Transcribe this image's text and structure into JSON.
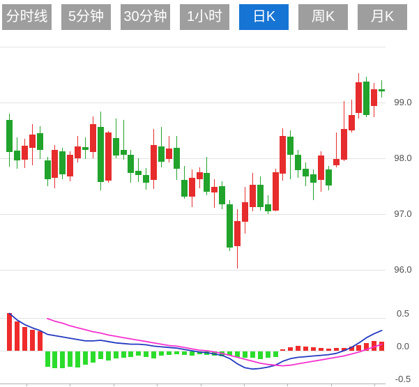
{
  "tabs": [
    {
      "label": "分时线",
      "active": false
    },
    {
      "label": "5分钟",
      "active": false
    },
    {
      "label": "30分钟",
      "active": false
    },
    {
      "label": "1小时",
      "active": false
    },
    {
      "label": "日K",
      "active": true
    },
    {
      "label": "周K",
      "active": false
    },
    {
      "label": "月K",
      "active": false
    }
  ],
  "colors": {
    "tab_bg": "#9e9e9e",
    "tab_active_bg": "#1674d4",
    "up": "#e62c2c",
    "down": "#21a32c",
    "hist_up": "#ef2b2b",
    "hist_down": "#2cdc2c",
    "dif_line": "#2238c0",
    "dea_line": "#f531cf",
    "grid": "#e2e2e2",
    "axis": "#b0b0b0",
    "label": "#4d4d4d"
  },
  "chart_data": {
    "type": "candlestick",
    "color_convention": "red = close above open (up), green = close below open (down)",
    "panels": [
      {
        "name": "price",
        "yticks": [
          "99.0",
          "98.0",
          "97.0",
          "96.0"
        ],
        "ytick_values": [
          99.0,
          98.0,
          97.0,
          96.0
        ],
        "ylim": [
          95.9,
          100.1
        ],
        "grid": true,
        "legend": "none"
      },
      {
        "name": "macd",
        "yticks": [
          "0.5",
          "0.0",
          "-0.5"
        ],
        "ytick_values": [
          0.5,
          0.0,
          -0.5
        ],
        "ylim": [
          -0.55,
          0.6
        ],
        "grid": true,
        "legend": "none"
      }
    ],
    "ohlc_order": [
      "open",
      "high",
      "low",
      "close"
    ],
    "candles": [
      [
        98.69,
        98.8,
        97.85,
        98.11
      ],
      [
        98.14,
        98.38,
        97.81,
        97.96
      ],
      [
        97.98,
        98.35,
        97.83,
        98.23
      ],
      [
        98.19,
        98.61,
        97.88,
        98.42
      ],
      [
        98.45,
        98.57,
        97.99,
        98.15
      ],
      [
        97.96,
        98.03,
        97.5,
        97.63
      ],
      [
        97.65,
        98.24,
        97.46,
        98.15
      ],
      [
        98.13,
        98.19,
        97.63,
        97.71
      ],
      [
        97.68,
        98.13,
        97.59,
        98.06
      ],
      [
        98.0,
        98.4,
        97.93,
        98.21
      ],
      [
        98.2,
        98.38,
        97.99,
        98.15
      ],
      [
        98.11,
        98.75,
        98.0,
        98.61
      ],
      [
        98.56,
        98.84,
        97.43,
        97.57
      ],
      [
        97.6,
        98.49,
        97.56,
        98.46
      ],
      [
        98.36,
        98.71,
        98.0,
        98.05
      ],
      [
        98.15,
        98.69,
        97.97,
        98.06
      ],
      [
        98.06,
        98.15,
        97.56,
        97.74
      ],
      [
        97.78,
        98.0,
        97.58,
        97.7
      ],
      [
        97.7,
        97.83,
        97.44,
        97.56
      ],
      [
        97.61,
        98.53,
        97.45,
        98.24
      ],
      [
        98.21,
        98.56,
        97.84,
        97.94
      ],
      [
        97.99,
        98.4,
        97.93,
        98.18
      ],
      [
        98.19,
        98.4,
        97.61,
        97.81
      ],
      [
        97.61,
        97.86,
        97.28,
        97.31
      ],
      [
        97.31,
        97.8,
        97.13,
        97.65
      ],
      [
        97.63,
        97.84,
        97.46,
        97.75
      ],
      [
        97.74,
        98.03,
        97.34,
        97.4
      ],
      [
        97.39,
        97.63,
        97.11,
        97.49
      ],
      [
        97.5,
        97.59,
        97.09,
        97.17
      ],
      [
        97.18,
        97.25,
        96.34,
        96.4
      ],
      [
        96.43,
        97.09,
        96.03,
        96.88
      ],
      [
        96.86,
        97.49,
        96.65,
        97.21
      ],
      [
        97.13,
        97.74,
        97.05,
        97.53
      ],
      [
        97.53,
        97.68,
        97.06,
        97.13
      ],
      [
        97.18,
        97.34,
        97.0,
        97.05
      ],
      [
        97.06,
        97.81,
        97.05,
        97.75
      ],
      [
        97.73,
        98.54,
        97.6,
        98.4
      ],
      [
        98.39,
        98.5,
        97.62,
        98.06
      ],
      [
        98.06,
        98.15,
        97.65,
        97.79
      ],
      [
        97.81,
        97.92,
        97.5,
        97.67
      ],
      [
        97.71,
        97.8,
        97.25,
        97.56
      ],
      [
        97.61,
        98.13,
        97.4,
        98.05
      ],
      [
        97.8,
        97.86,
        97.42,
        97.51
      ],
      [
        97.88,
        98.46,
        97.84,
        97.99
      ],
      [
        97.98,
        99.02,
        97.95,
        98.52
      ],
      [
        98.5,
        99.05,
        98.46,
        98.78
      ],
      [
        98.81,
        99.53,
        98.71,
        99.36
      ],
      [
        99.38,
        99.46,
        98.74,
        98.78
      ],
      [
        98.94,
        99.35,
        98.74,
        99.24
      ],
      [
        99.24,
        99.4,
        99.09,
        99.2
      ]
    ],
    "macd": {
      "histogram": [
        0.57,
        0.45,
        0.36,
        0.32,
        0.3,
        -0.23,
        -0.26,
        -0.25,
        -0.23,
        -0.24,
        -0.2,
        -0.17,
        -0.12,
        -0.14,
        -0.11,
        -0.1,
        -0.08,
        -0.06,
        -0.09,
        -0.11,
        -0.06,
        -0.05,
        -0.04,
        -0.05,
        -0.06,
        -0.04,
        -0.05,
        -0.06,
        -0.07,
        -0.06,
        -0.08,
        -0.1,
        -0.1,
        -0.12,
        -0.1,
        -0.08,
        0.02,
        0.05,
        0.07,
        0.06,
        0.05,
        0.04,
        0.03,
        0.04,
        0.04,
        0.06,
        0.09,
        0.12,
        0.15,
        0.14
      ],
      "dif": [
        0.57,
        0.47,
        0.4,
        0.35,
        0.31,
        0.25,
        0.23,
        0.21,
        0.19,
        0.17,
        0.15,
        0.15,
        0.16,
        0.14,
        0.12,
        0.11,
        0.1,
        0.1,
        0.09,
        0.07,
        0.06,
        0.05,
        0.04,
        0.02,
        0.0,
        -0.02,
        -0.03,
        -0.05,
        -0.07,
        -0.12,
        -0.2,
        -0.26,
        -0.28,
        -0.27,
        -0.25,
        -0.22,
        -0.16,
        -0.12,
        -0.1,
        -0.09,
        -0.08,
        -0.07,
        -0.06,
        -0.04,
        0.0,
        0.05,
        0.12,
        0.2,
        0.26,
        0.31
      ],
      "dea": [
        null,
        null,
        null,
        null,
        null,
        0.49,
        0.45,
        0.42,
        0.38,
        0.35,
        0.32,
        0.29,
        0.27,
        0.24,
        0.22,
        0.2,
        0.18,
        0.16,
        0.14,
        0.12,
        0.1,
        0.08,
        0.07,
        0.05,
        0.03,
        0.01,
        0.0,
        -0.02,
        -0.04,
        -0.07,
        -0.1,
        -0.13,
        -0.16,
        -0.19,
        -0.21,
        -0.22,
        -0.23,
        -0.22,
        -0.2,
        -0.18,
        -0.16,
        -0.14,
        -0.12,
        -0.1,
        -0.08,
        -0.05,
        -0.02,
        0.02,
        0.06,
        0.1
      ]
    },
    "xtick_count": 9
  }
}
